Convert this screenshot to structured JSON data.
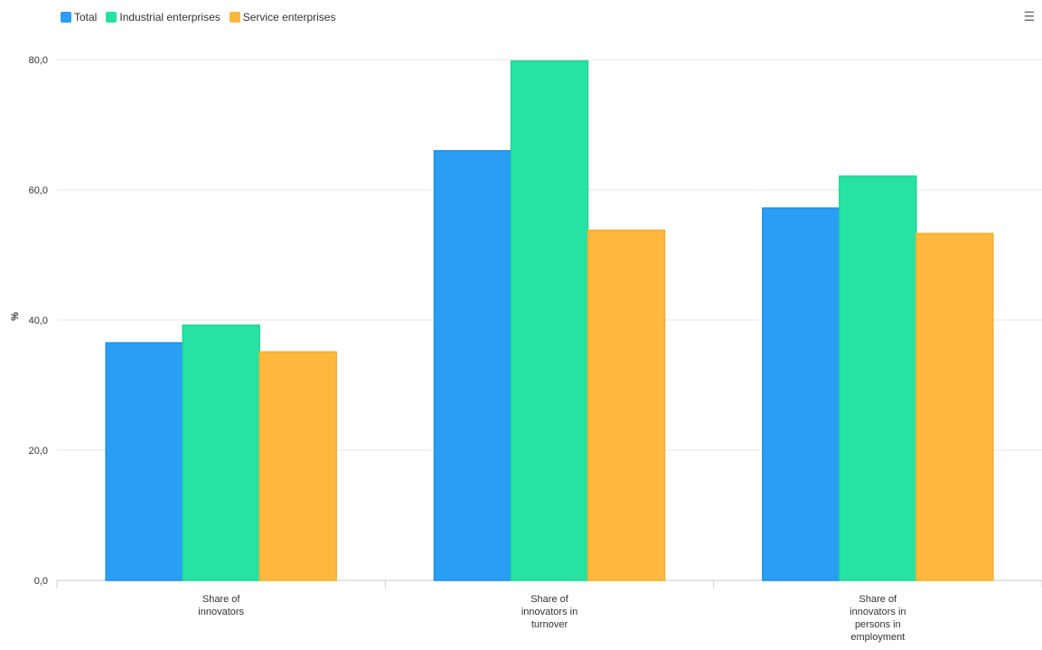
{
  "colors": {
    "series": [
      "#2a9df4",
      "#27e3a3",
      "#fdb83d"
    ],
    "series_stroke": [
      "#1f8fe6",
      "#20d496",
      "#f5ad2f"
    ],
    "grid": "#e6e6e6",
    "axis": "#cccccc"
  },
  "ui": {
    "menu_icon": "☰"
  },
  "chart_data": {
    "type": "bar",
    "ylabel": "%",
    "ylim": [
      0,
      80
    ],
    "yticks": [
      "0,0",
      "20,0",
      "40,0",
      "60,0",
      "80,0"
    ],
    "ytick_values": [
      0,
      20,
      40,
      60,
      80
    ],
    "grid": true,
    "legend_position": "top-left",
    "categories": [
      [
        "Share of",
        "innovators"
      ],
      [
        "Share of",
        "innovators in",
        "turnover"
      ],
      [
        "Share of",
        "innovators in",
        "persons in",
        "employment"
      ]
    ],
    "series": [
      {
        "name": "Total",
        "values": [
          36.5,
          66.0,
          57.2
        ]
      },
      {
        "name": "Industrial enterprises",
        "values": [
          39.2,
          79.8,
          62.1
        ]
      },
      {
        "name": "Service enterprises",
        "values": [
          35.1,
          53.8,
          53.3
        ]
      }
    ]
  }
}
